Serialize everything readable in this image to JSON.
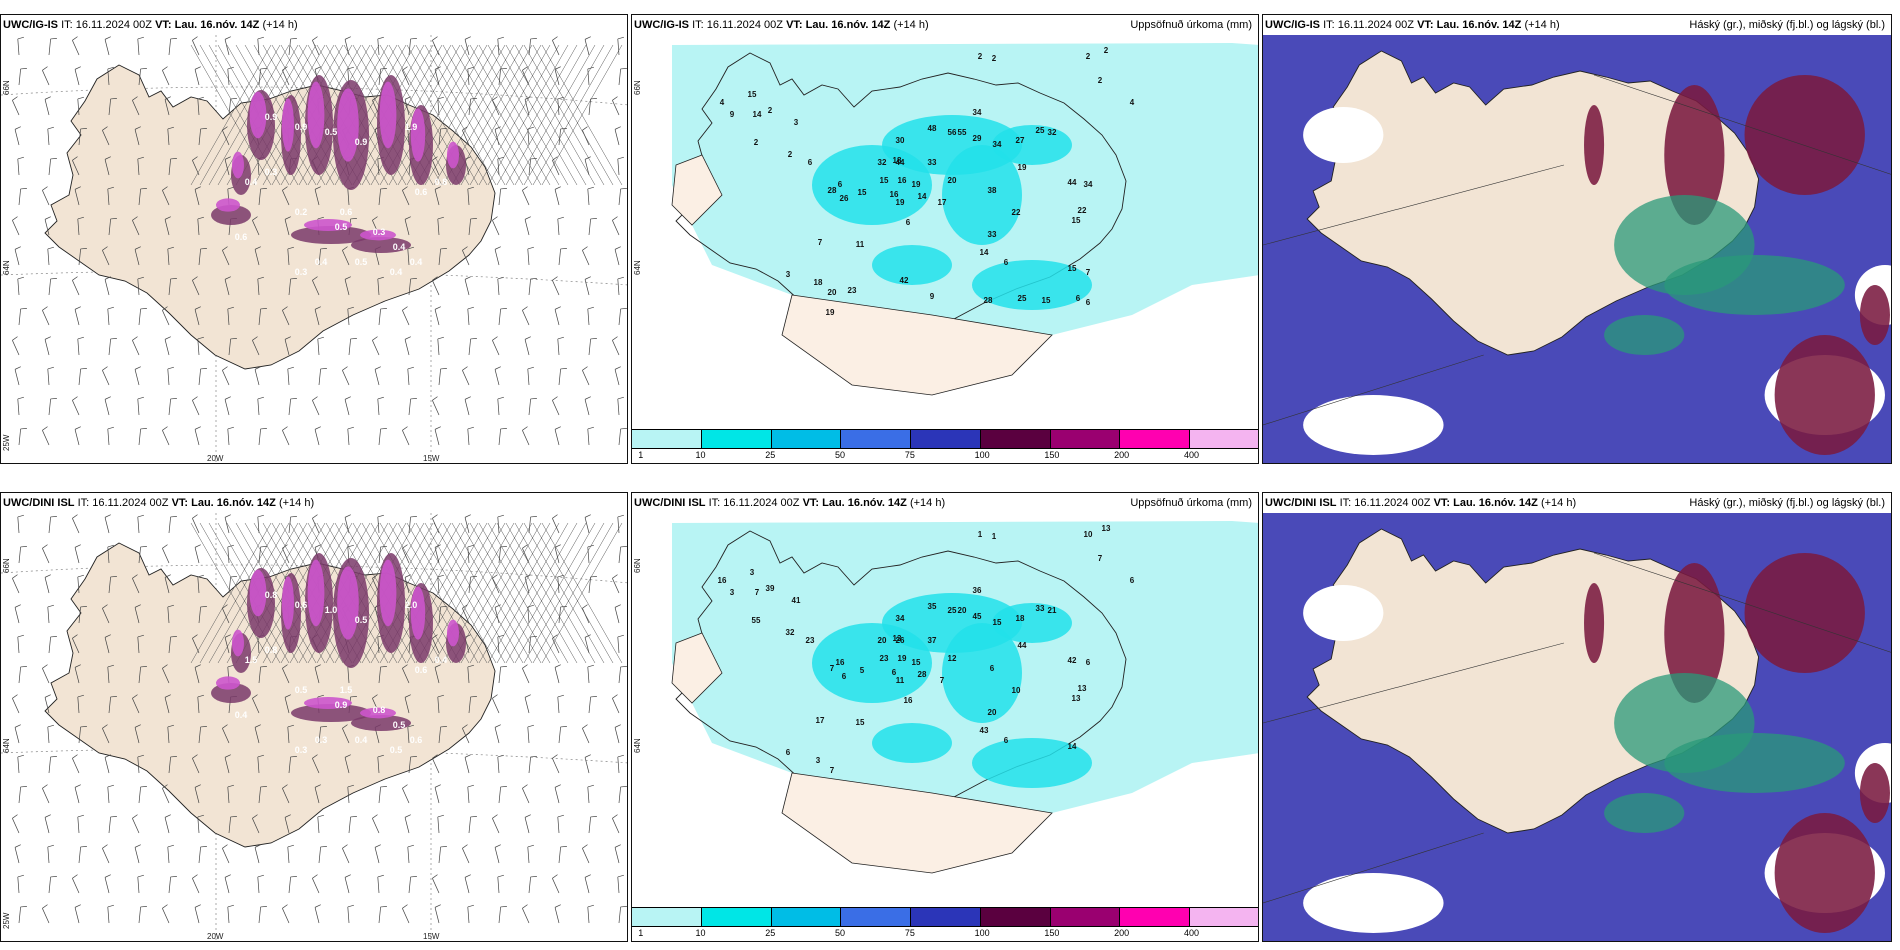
{
  "panels": {
    "ig_wind": {
      "model": "UWC/IG-IS",
      "it_label": "IT:",
      "it": "16.11.2024 00Z",
      "vt_label": "VT:",
      "vt": "Lau. 16.nóv. 14Z",
      "lead": "(+14 h)",
      "lat_a": "66N",
      "lat_b": "64N",
      "lon_a": "20W",
      "lon_b": "15W",
      "lon_c": "25W",
      "values": [
        "0.9",
        "0.9",
        "0.5",
        "0.9",
        "1.9",
        "0.4",
        "0.5",
        "0.3",
        "0.4",
        "0.6",
        "0.8",
        "0.3",
        "0.2",
        "0.4",
        "0.5",
        "0.4",
        "0.4",
        "0.6",
        "0.3",
        "0.6"
      ]
    },
    "ig_precip": {
      "model": "UWC/IG-IS",
      "it_label": "IT:",
      "it": "16.11.2024 00Z",
      "vt_label": "VT:",
      "vt": "Lau. 16.nóv. 14Z",
      "lead": "(+14 h)",
      "title": "Uppsöfnuð úrkoma (mm)",
      "lat_a": "66N",
      "lat_b": "64N",
      "values": [
        "2",
        "2",
        "2",
        "2",
        "2",
        "4",
        "4",
        "9",
        "15",
        "14",
        "2",
        "3",
        "2",
        "2",
        "6",
        "30",
        "44",
        "48",
        "56",
        "55",
        "34",
        "29",
        "34",
        "27",
        "25",
        "32",
        "19",
        "44",
        "32",
        "18",
        "16",
        "33",
        "15",
        "16",
        "19",
        "20",
        "6",
        "28",
        "26",
        "15",
        "19",
        "14",
        "17",
        "38",
        "22",
        "34",
        "22",
        "15",
        "7",
        "11",
        "6",
        "33",
        "14",
        "6",
        "15",
        "3",
        "18",
        "20",
        "23",
        "42",
        "19",
        "9",
        "28",
        "25",
        "15",
        "7",
        "6",
        "6"
      ]
    },
    "ig_cloud": {
      "model": "UWC/IG-IS",
      "it_label": "IT:",
      "it": "16.11.2024 00Z",
      "vt_label": "VT:",
      "vt": "Lau. 16.nóv. 14Z",
      "lead": "(+14 h)",
      "title": "Háský (gr.), miðský (fj.bl.) og lágský (bl.)"
    },
    "dini_wind": {
      "model": "UWC/DINI ISL",
      "it_label": "IT:",
      "it": "16.11.2024 00Z",
      "vt_label": "VT:",
      "vt": "Lau. 16.nóv. 14Z",
      "lead": "(+14 h)",
      "lat_a": "66N",
      "lat_b": "64N",
      "lon_a": "20W",
      "lon_b": "15W",
      "lon_c": "25W",
      "values": [
        "0.8",
        "0.6",
        "1.0",
        "0.5",
        "2.0",
        "1.5",
        "0.9",
        "0.8",
        "0.5",
        "0.6",
        "0.4",
        "0.8",
        "0.5",
        "0.3",
        "0.4",
        "0.5",
        "0.6",
        "1.5",
        "0.3",
        "0.4"
      ]
    },
    "dini_precip": {
      "model": "UWC/DINI ISL",
      "it_label": "IT:",
      "it": "16.11.2024 00Z",
      "vt_label": "VT:",
      "vt": "Lau. 16.nóv. 14Z",
      "lead": "(+14 h)",
      "title": "Uppsöfnuð úrkoma (mm)",
      "lat_a": "66N",
      "lat_b": "64N",
      "values": [
        "1",
        "1",
        "10",
        "13",
        "7",
        "6",
        "16",
        "3",
        "3",
        "7",
        "39",
        "41",
        "55",
        "32",
        "23",
        "34",
        "26",
        "35",
        "25",
        "20",
        "36",
        "45",
        "15",
        "18",
        "33",
        "21",
        "44",
        "42",
        "20",
        "13",
        "19",
        "37",
        "23",
        "6",
        "15",
        "12",
        "16",
        "7",
        "6",
        "5",
        "11",
        "28",
        "7",
        "6",
        "10",
        "6",
        "13",
        "13",
        "17",
        "15",
        "16",
        "20",
        "43",
        "6",
        "14",
        "6",
        "3",
        "7"
      ]
    },
    "dini_cloud": {
      "model": "UWC/DINI ISL",
      "it_label": "IT:",
      "it": "16.11.2024 00Z",
      "vt_label": "VT:",
      "vt": "Lau. 16.nóv. 14Z",
      "lead": "(+14 h)",
      "title": "Háský (gr.), miðský (fj.bl.) og lágský (bl.)"
    }
  },
  "colorbar": {
    "ticks": [
      "1",
      "10",
      "25",
      "50",
      "75",
      "100",
      "150",
      "200",
      "400"
    ],
    "colors": [
      "#b8f4f4",
      "#00e6e6",
      "#00bde6",
      "#3a6ee6",
      "#2b35b8",
      "#5a003f",
      "#9a0070",
      "#ff00b0",
      "#f4b4f0"
    ]
  },
  "palette": {
    "land": "#f2e4d4",
    "land_precip": "#fbefe4",
    "precip_light": "#b8f4f4",
    "precip_mod": "#22e0ea",
    "wind_purple": "#cc55cc",
    "wind_dark": "#7a3a6a",
    "cloud_high": "#7a1a40",
    "cloud_mid": "#4a4ab8",
    "cloud_low": "#2a9a7a"
  }
}
